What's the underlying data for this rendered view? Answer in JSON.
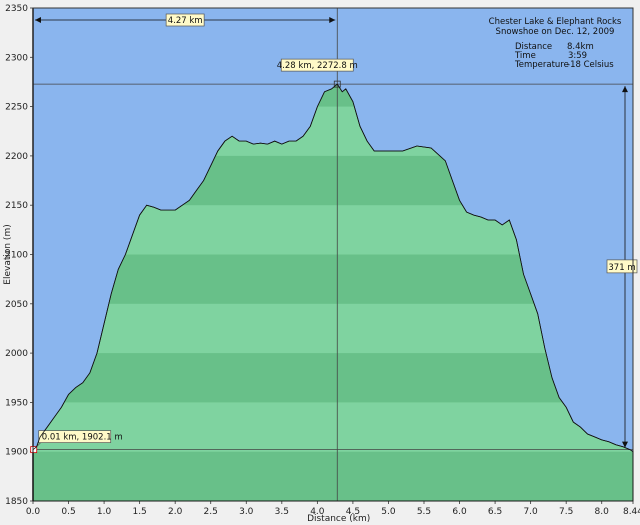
{
  "chart_data": {
    "type": "area",
    "title": "Chester Lake & Elephant  Rocks",
    "subtitle": "Snowshoe on Dec. 12, 2009",
    "xlabel": "Distance   (km)",
    "ylabel": "Elevation (m)",
    "xlim": [
      0,
      8.44
    ],
    "ylim": [
      1850,
      2350
    ],
    "x_ticks": [
      "0.0",
      "0.5",
      "1.0",
      "1.5",
      "2.0",
      "2.5",
      "3.0",
      "3.5",
      "4.0",
      "4.5",
      "5.0",
      "5.5",
      "6.0",
      "6.5",
      "7.0",
      "7.5",
      "8.0",
      "8.44"
    ],
    "x_tick_values": [
      0,
      0.5,
      1,
      1.5,
      2,
      2.5,
      3,
      3.5,
      4,
      4.5,
      5,
      5.5,
      6,
      6.5,
      7,
      7.5,
      8,
      8.44
    ],
    "y_ticks": [
      "1850",
      "1900",
      "1950",
      "2000",
      "2050",
      "2100",
      "2150",
      "2200",
      "2250",
      "2300",
      "2350"
    ],
    "y_tick_values": [
      1850,
      1900,
      1950,
      2000,
      2050,
      2100,
      2150,
      2200,
      2250,
      2300,
      2350
    ],
    "stats": [
      {
        "label": "Distance",
        "value": "8.4km"
      },
      {
        "label": "Time",
        "value": "3:59"
      },
      {
        "label": "Temperature",
        "value": "-18 Celsius"
      }
    ],
    "max_point": {
      "x": 4.28,
      "y": 2272.8,
      "label": "4.28 km, 2272.8 m"
    },
    "min_point": {
      "x": 0.01,
      "y": 1902.1,
      "label": "0.01 km, 1902.1 m"
    },
    "distance_marker": {
      "label": "4.27 km"
    },
    "gain_marker": {
      "label": "371 m"
    },
    "series": [
      {
        "x": [
          0.0,
          0.05,
          0.1,
          0.2,
          0.3,
          0.4,
          0.5,
          0.6,
          0.7,
          0.8,
          0.9,
          1.0,
          1.1,
          1.2,
          1.3,
          1.4,
          1.5,
          1.6,
          1.7,
          1.8,
          1.9,
          2.0,
          2.1,
          2.2,
          2.3,
          2.4,
          2.5,
          2.6,
          2.7,
          2.8,
          2.9,
          3.0,
          3.1,
          3.2,
          3.3,
          3.4,
          3.5,
          3.6,
          3.7,
          3.8,
          3.9,
          4.0,
          4.1,
          4.2,
          4.28,
          4.35,
          4.4,
          4.5,
          4.6,
          4.7,
          4.8,
          4.9,
          5.0,
          5.2,
          5.4,
          5.6,
          5.8,
          5.9,
          6.0,
          6.1,
          6.2,
          6.3,
          6.4,
          6.5,
          6.6,
          6.7,
          6.8,
          6.9,
          7.0,
          7.1,
          7.2,
          7.3,
          7.4,
          7.5,
          7.6,
          7.7,
          7.8,
          7.9,
          8.0,
          8.1,
          8.2,
          8.3,
          8.4,
          8.44
        ],
        "y": [
          1902,
          1905,
          1915,
          1925,
          1935,
          1945,
          1958,
          1965,
          1970,
          1980,
          2000,
          2030,
          2060,
          2085,
          2100,
          2120,
          2140,
          2150,
          2148,
          2145,
          2145,
          2145,
          2150,
          2155,
          2165,
          2175,
          2190,
          2205,
          2215,
          2220,
          2215,
          2215,
          2212,
          2213,
          2212,
          2215,
          2212,
          2215,
          2215,
          2220,
          2230,
          2250,
          2265,
          2268,
          2272.8,
          2265,
          2268,
          2255,
          2230,
          2215,
          2205,
          2205,
          2205,
          2205,
          2210,
          2208,
          2195,
          2175,
          2155,
          2143,
          2140,
          2138,
          2135,
          2135,
          2130,
          2135,
          2115,
          2080,
          2060,
          2040,
          2005,
          1975,
          1955,
          1945,
          1930,
          1925,
          1918,
          1915,
          1912,
          1910,
          1907,
          1905,
          1902,
          1900
        ]
      }
    ]
  }
}
